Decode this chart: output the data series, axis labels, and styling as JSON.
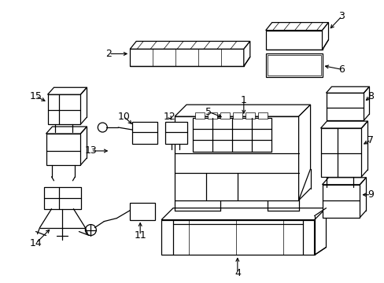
{
  "bg_color": "#ffffff",
  "line_color": "#000000",
  "figsize": [
    4.89,
    3.6
  ],
  "dpi": 100,
  "label_fontsize": 9
}
